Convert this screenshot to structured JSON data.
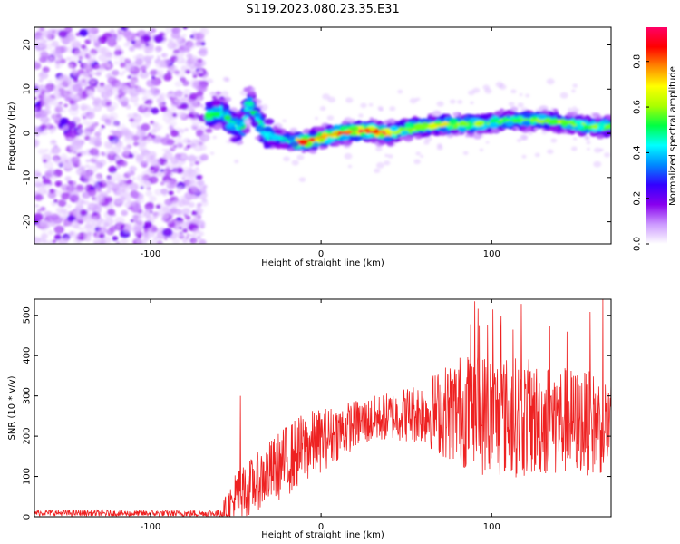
{
  "title": "S119.2023.080.23.35.E31",
  "chart_data": [
    {
      "type": "heatmap",
      "xlabel": "Height of straight line (km)",
      "ylabel": "Frequency (Hz)",
      "xlim": [
        -168,
        170
      ],
      "ylim": [
        -25,
        24
      ],
      "xticks": [
        -100,
        0,
        100
      ],
      "yticks": [
        -20,
        -10,
        0,
        10,
        20
      ],
      "ridge": {
        "description_values": "center frequency of the strong signal band vs height",
        "x": [
          -65,
          -58,
          -52,
          -47,
          -42,
          -38,
          -33,
          -28,
          -20,
          -10,
          0,
          10,
          20,
          30,
          40,
          50,
          60,
          70,
          80,
          90,
          100,
          110,
          120,
          130,
          140,
          150,
          160,
          168
        ],
        "y": [
          4,
          5,
          2,
          1,
          7,
          4,
          0,
          -1,
          -1.5,
          -2,
          -1,
          0,
          0.5,
          0.5,
          0,
          1,
          1.5,
          2,
          2,
          2,
          2.5,
          3,
          3,
          3,
          2.5,
          2,
          1.5,
          1.5
        ]
      },
      "colorbar": {
        "label": "Normalized spectral amplitude",
        "range": [
          0.0,
          0.95
        ],
        "ticks": [
          0.0,
          0.2,
          0.4,
          0.6,
          0.8
        ],
        "tick_labels": [
          "0.0",
          "0.2",
          "0.4",
          "0.6",
          "0.8"
        ],
        "colors": [
          "#ffffff",
          "#cc99ff",
          "#8800ee",
          "#3300ff",
          "#0088ff",
          "#00ffff",
          "#00ff44",
          "#aaff00",
          "#ffff00",
          "#ff8800",
          "#ff0000",
          "#ff0066"
        ]
      }
    },
    {
      "type": "line",
      "xlabel": "Height of straight line (km)",
      "ylabel": "SNR (10 * v/v)",
      "xlim": [
        -168,
        170
      ],
      "ylim": [
        0,
        540
      ],
      "xticks": [
        -100,
        0,
        100
      ],
      "yticks": [
        0,
        100,
        200,
        300,
        400,
        500
      ],
      "color": "#ee2222",
      "envelope": {
        "x": [
          -168,
          -120,
          -80,
          -60,
          -55,
          -50,
          -45,
          -40,
          -30,
          -20,
          -10,
          0,
          10,
          20,
          30,
          40,
          50,
          60,
          70,
          80,
          90,
          100,
          110,
          120,
          130,
          140,
          150,
          160,
          170
        ],
        "base": [
          10,
          8,
          8,
          8,
          20,
          40,
          60,
          80,
          110,
          140,
          170,
          190,
          210,
          230,
          240,
          250,
          255,
          260,
          260,
          265,
          260,
          250,
          250,
          245,
          240,
          240,
          235,
          230,
          230
        ],
        "spread": [
          8,
          8,
          8,
          10,
          40,
          80,
          70,
          70,
          80,
          90,
          90,
          80,
          70,
          60,
          60,
          60,
          70,
          80,
          110,
          140,
          150,
          160,
          150,
          150,
          140,
          140,
          130,
          130,
          120
        ]
      }
    }
  ]
}
